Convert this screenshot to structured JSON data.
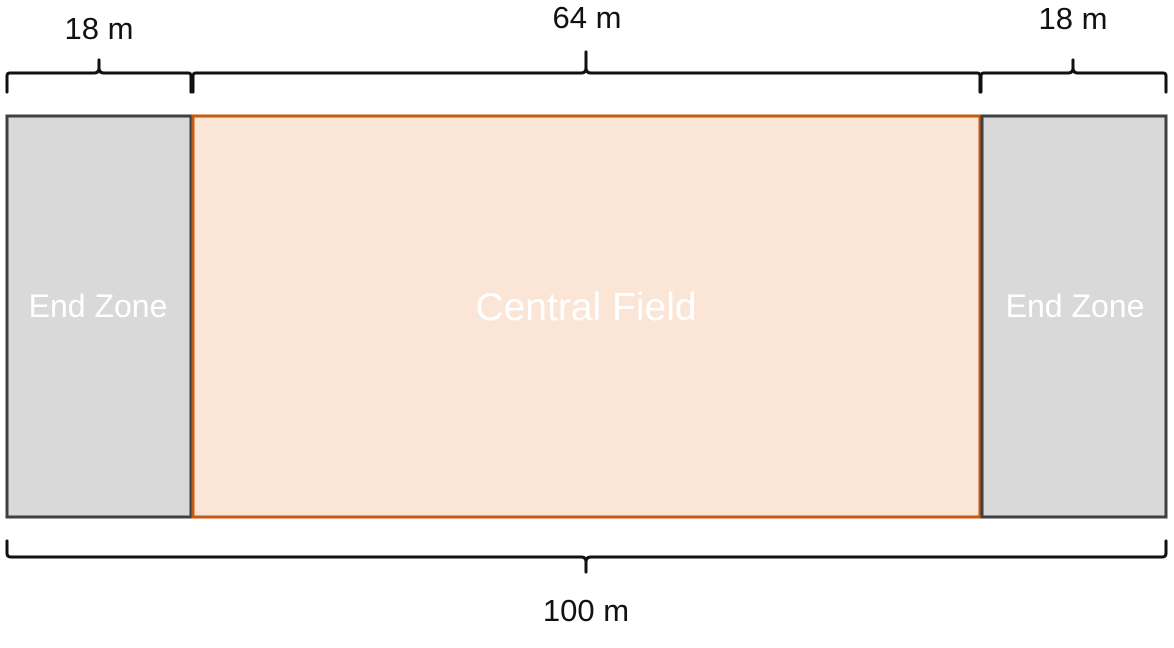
{
  "field": {
    "left_end_zone": {
      "label": "End Zone",
      "fill": "#d9d9d9",
      "border": "#404040"
    },
    "central_field": {
      "label": "Central Field",
      "fill": "#fbe5d6",
      "border": "#c55a11"
    },
    "right_end_zone": {
      "label": "End Zone",
      "fill": "#d9d9d9",
      "border": "#404040"
    }
  },
  "dimensions": {
    "left_end_zone": "18 m",
    "central_field": "64 m",
    "right_end_zone": "18 m",
    "total": "100 m"
  }
}
